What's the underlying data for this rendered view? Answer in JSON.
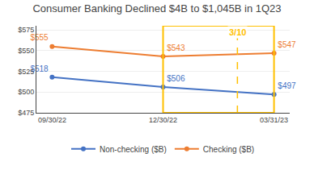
{
  "chart_data": {
    "type": "line",
    "title": "Consumer Banking Declined $4B to $1,045B in 1Q23",
    "categories": [
      "09/30/22",
      "12/30/22",
      "03/31/23"
    ],
    "series": [
      {
        "name": "Non-checking ($B)",
        "color": "#4472C4",
        "marker": "circle",
        "values": [
          518,
          506,
          497
        ],
        "value_labels": [
          "$518",
          "$506",
          "$497"
        ]
      },
      {
        "name": "Checking ($B)",
        "color": "#ED7D31",
        "marker": "circle",
        "values": [
          555,
          543,
          547
        ],
        "value_labels": [
          "$555",
          "$543",
          "$547"
        ]
      }
    ],
    "ylim": [
      475,
      580
    ],
    "yticks": [
      {
        "value": 475,
        "label": "$475"
      },
      {
        "value": 500,
        "label": "$500"
      },
      {
        "value": 525,
        "label": "$525"
      },
      {
        "value": 550,
        "label": "$550"
      },
      {
        "value": 575,
        "label": "$575"
      }
    ],
    "grid": true,
    "legend": "bottom",
    "data_labels": true,
    "box": {
      "x": [
        "12/30/22",
        "03/31/23"
      ],
      "color": "#FFC000"
    },
    "annotations": [
      {
        "text": "3/10",
        "x": 1.67,
        "line_style": "dashed",
        "color": "#FFC000"
      }
    ]
  }
}
